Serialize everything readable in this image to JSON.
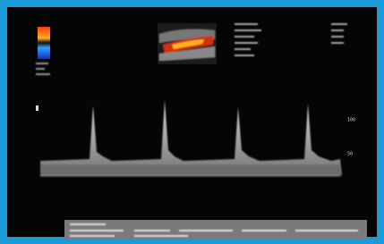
{
  "scale": {
    "upper_label": "100",
    "lower_label": "50"
  }
}
